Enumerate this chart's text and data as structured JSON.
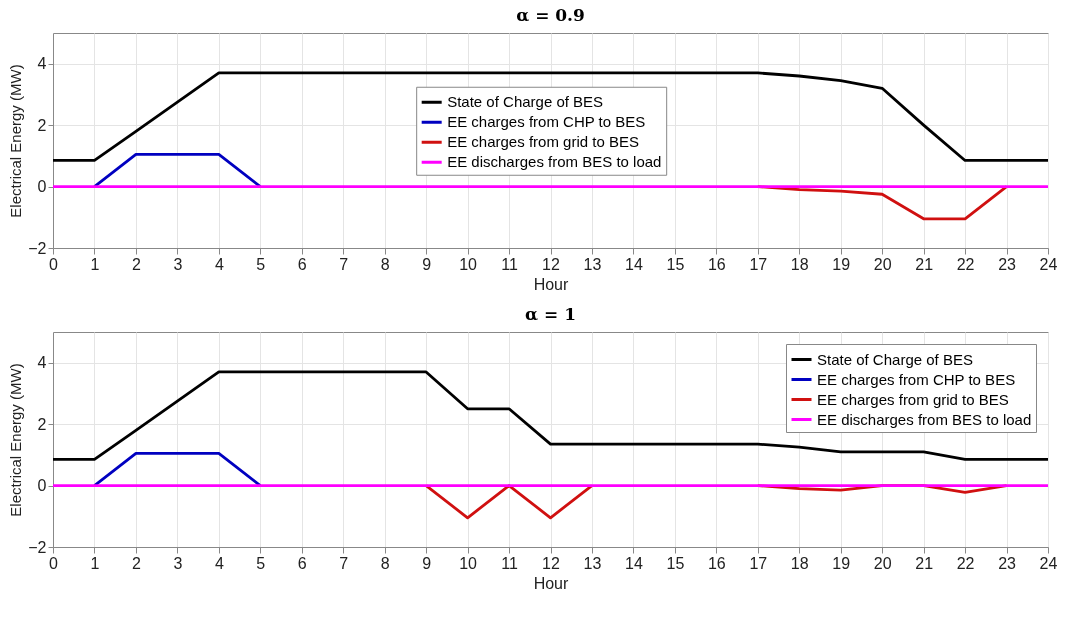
{
  "chart_data": [
    {
      "type": "line",
      "title": "α = 0.9",
      "xlabel": "Hour",
      "ylabel": "Electrical Energy (MW)",
      "x": [
        0,
        1,
        2,
        3,
        4,
        5,
        6,
        7,
        8,
        9,
        10,
        11,
        12,
        13,
        14,
        15,
        16,
        17,
        18,
        19,
        20,
        21,
        22,
        23,
        24
      ],
      "series": [
        {
          "name": "State of Charge of BES",
          "color": "#000000",
          "values": [
            0.85,
            0.85,
            1.8,
            2.75,
            3.7,
            3.7,
            3.7,
            3.7,
            3.7,
            3.7,
            3.7,
            3.7,
            3.7,
            3.7,
            3.7,
            3.7,
            3.7,
            3.7,
            3.6,
            3.45,
            3.2,
            2.0,
            0.85,
            0.85,
            0.85
          ]
        },
        {
          "name": "EE charges from CHP to BES",
          "color": "#0000c0",
          "values": [
            null,
            0,
            1.05,
            1.05,
            1.05,
            0,
            null,
            null,
            null,
            null,
            null,
            null,
            null,
            null,
            null,
            null,
            null,
            null,
            null,
            null,
            null,
            null,
            null,
            null,
            null
          ]
        },
        {
          "name": "EE charges from grid to BES",
          "color": "#d01010",
          "values": [
            null,
            null,
            null,
            null,
            null,
            null,
            null,
            null,
            null,
            null,
            null,
            null,
            null,
            null,
            null,
            null,
            null,
            0,
            -0.1,
            -0.15,
            -0.25,
            -1.05,
            -1.05,
            0,
            null
          ]
        },
        {
          "name": "EE discharges from BES to load",
          "color": "#ff00ff",
          "values": [
            0,
            0,
            0,
            0,
            0,
            0,
            0,
            0,
            0,
            0,
            0,
            0,
            0,
            0,
            0,
            0,
            0,
            0,
            0,
            0,
            0,
            0,
            0,
            0,
            0
          ]
        }
      ],
      "xlim": [
        0,
        24
      ],
      "xticks": [
        0,
        1,
        2,
        3,
        4,
        5,
        6,
        7,
        8,
        9,
        10,
        11,
        12,
        13,
        14,
        15,
        16,
        17,
        18,
        19,
        20,
        21,
        22,
        23,
        24
      ],
      "ylim": [
        -2,
        5
      ],
      "yticks": [
        -2,
        0,
        2,
        4
      ],
      "grid": true,
      "legend": "top",
      "marker": "none",
      "line_style": "solid"
    },
    {
      "type": "line",
      "title": "α = 1",
      "xlabel": "Hour",
      "ylabel": "Electrical Energy (MW)",
      "x": [
        0,
        1,
        2,
        3,
        4,
        5,
        6,
        7,
        8,
        9,
        10,
        11,
        12,
        13,
        14,
        15,
        16,
        17,
        18,
        19,
        20,
        21,
        22,
        23,
        24
      ],
      "series": [
        {
          "name": "State of Charge of BES",
          "color": "#000000",
          "values": [
            0.85,
            0.85,
            1.8,
            2.75,
            3.7,
            3.7,
            3.7,
            3.7,
            3.7,
            3.7,
            2.5,
            2.5,
            1.35,
            1.35,
            1.35,
            1.35,
            1.35,
            1.35,
            1.25,
            1.1,
            1.1,
            1.1,
            0.85,
            0.85,
            0.85
          ]
        },
        {
          "name": "EE charges from CHP to BES",
          "color": "#0000c0",
          "values": [
            null,
            0,
            1.05,
            1.05,
            1.05,
            0,
            null,
            null,
            null,
            null,
            null,
            null,
            null,
            null,
            null,
            null,
            null,
            null,
            null,
            null,
            null,
            null,
            null,
            null,
            null
          ]
        },
        {
          "name": "EE charges from grid to BES",
          "color": "#d01010",
          "values": [
            null,
            null,
            null,
            null,
            null,
            null,
            null,
            null,
            null,
            0,
            -1.05,
            0,
            -1.05,
            0,
            null,
            null,
            null,
            0,
            -0.1,
            -0.15,
            0,
            0,
            -0.22,
            0,
            null
          ]
        },
        {
          "name": "EE discharges from BES to load",
          "color": "#ff00ff",
          "values": [
            0,
            0,
            0,
            0,
            0,
            0,
            0,
            0,
            0,
            0,
            0,
            0,
            0,
            0,
            0,
            0,
            0,
            0,
            0,
            0,
            0,
            0,
            0,
            0,
            0
          ]
        }
      ],
      "xlim": [
        0,
        24
      ],
      "xticks": [
        0,
        1,
        2,
        3,
        4,
        5,
        6,
        7,
        8,
        9,
        10,
        11,
        12,
        13,
        14,
        15,
        16,
        17,
        18,
        19,
        20,
        21,
        22,
        23,
        24
      ],
      "ylim": [
        -2,
        5
      ],
      "yticks": [
        -2,
        0,
        2,
        4
      ],
      "grid": true,
      "legend": "top right",
      "marker": "none",
      "line_style": "solid"
    }
  ]
}
